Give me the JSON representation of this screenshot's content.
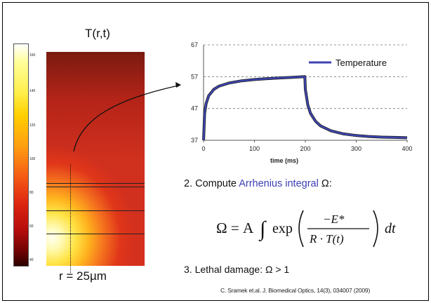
{
  "heatmap": {
    "title": "T(r,t)",
    "colorbar_ticks": [
      "160",
      "140",
      "120",
      "100",
      "80",
      "60",
      "40"
    ],
    "radius_label": "r = 25µm"
  },
  "chart_data": {
    "type": "line",
    "xlabel": "time (ms)",
    "ylabel": "",
    "xlim": [
      0,
      400
    ],
    "ylim": [
      37,
      67
    ],
    "x_ticks": [
      0,
      100,
      200,
      300,
      400
    ],
    "y_ticks": [
      37,
      47,
      57,
      67
    ],
    "grid": "horizontal dashed",
    "legend_position": "top-right",
    "series": [
      {
        "name": "Temperature",
        "color": "#3d44b0",
        "x": [
          0,
          2,
          5,
          10,
          20,
          30,
          50,
          75,
          100,
          125,
          150,
          175,
          199,
          200,
          205,
          210,
          220,
          230,
          250,
          275,
          300,
          325,
          350,
          375,
          400
        ],
        "y": [
          37,
          45.5,
          48.5,
          51,
          53,
          54,
          55,
          55.7,
          56.1,
          56.4,
          56.6,
          56.8,
          57,
          53,
          48,
          45.5,
          43,
          41.5,
          40,
          39,
          38.5,
          38.2,
          38,
          37.9,
          37.8
        ]
      }
    ]
  },
  "steps": {
    "step2_prefix": "2. Compute ",
    "step2_highlight": "Arrhenius integral",
    "step2_suffix": " Ω:",
    "step3": "3. Lethal damage: Ω > 1"
  },
  "formula": {
    "lhs": "Ω = A",
    "integral": "∫",
    "exp": "exp",
    "numerator": "−E*",
    "denominator": "R · T(t)",
    "dt": "dt"
  },
  "citation": "C. Sramek et.al. J. Biomedical Optics, 14(3), 034007 (2009)",
  "colors": {
    "accent_blue": "#3b3fb5",
    "line_blue": "#3d44b0"
  }
}
